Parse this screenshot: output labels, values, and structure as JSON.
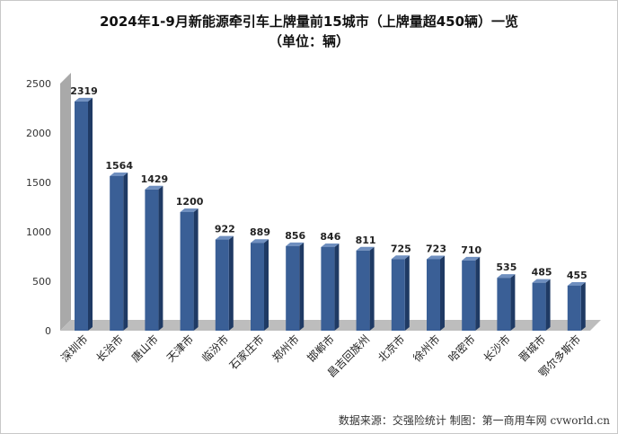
{
  "chart_data": {
    "type": "bar",
    "title": "2024年1-9月新能源牵引车上牌量前15城市（上牌量超450辆）一览",
    "subtitle": "（单位：辆）",
    "categories": [
      "深圳市",
      "长治市",
      "唐山市",
      "天津市",
      "临汾市",
      "石家庄市",
      "郑州市",
      "邯郸市",
      "昌吉回族州",
      "北京市",
      "徐州市",
      "哈密市",
      "长沙市",
      "晋城市",
      "鄂尔多斯市"
    ],
    "values": [
      2319,
      1564,
      1429,
      1200,
      922,
      889,
      856,
      846,
      811,
      725,
      723,
      710,
      535,
      485,
      455
    ],
    "y_ticks": [
      "0",
      "500",
      "1000",
      "1500",
      "2000",
      "2500"
    ],
    "ylim": [
      0,
      2500
    ],
    "grid": false,
    "colors": {
      "bar_front": "#3a5f96",
      "bar_side": "#1f3a64",
      "bar_top": "#6f8fbf",
      "wall": "#a9a9a9",
      "floor": "#bdbdbd"
    }
  },
  "footer": "数据来源：交强险统计  制图：第一商用车网 cvworld.cn"
}
